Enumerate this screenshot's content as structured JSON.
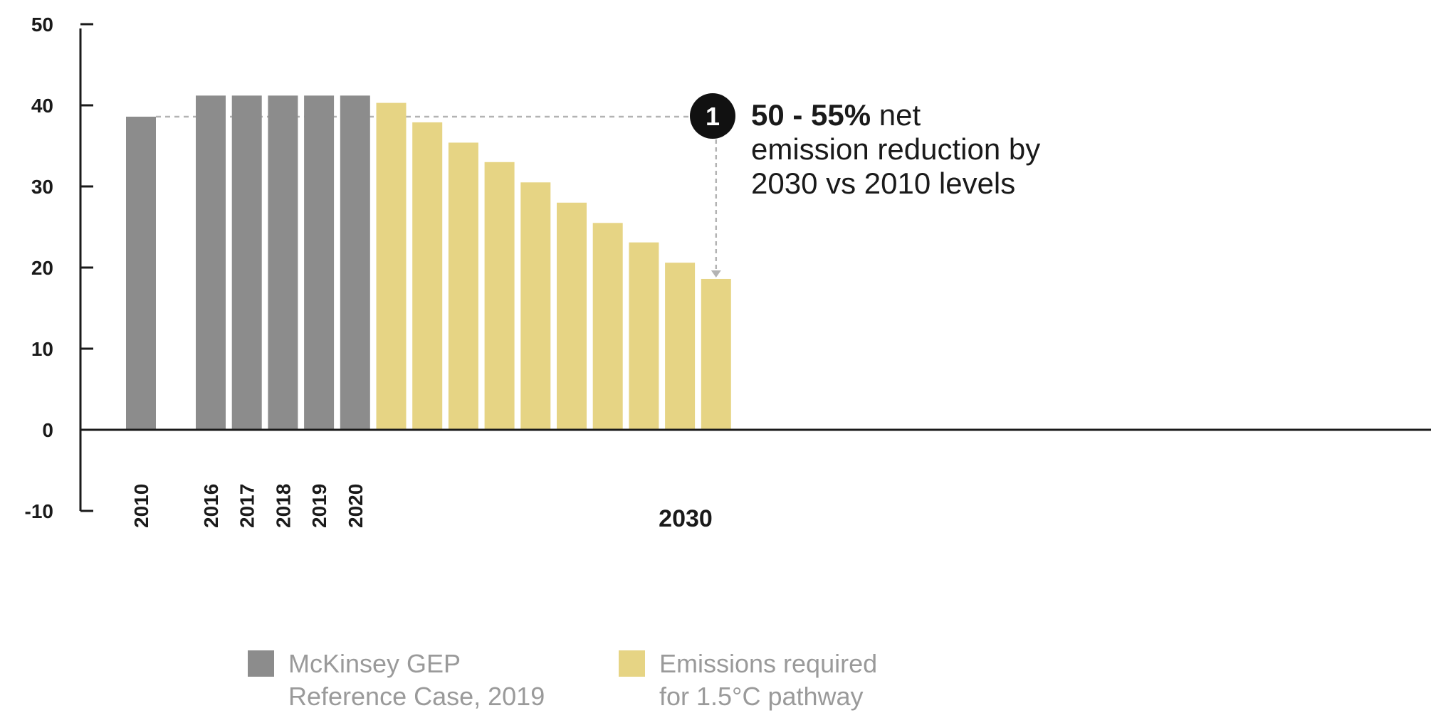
{
  "chart_data": {
    "type": "bar",
    "y_axis": {
      "min": -10,
      "max": 50,
      "ticks": [
        50,
        40,
        30,
        20,
        10,
        0,
        -10
      ]
    },
    "x_axis_highlight_label": "2030",
    "bars": [
      {
        "label": "2010",
        "value": 38.6,
        "series": "reference"
      },
      {
        "label": "2016",
        "value": 41.2,
        "series": "reference"
      },
      {
        "label": "2017",
        "value": 41.2,
        "series": "reference"
      },
      {
        "label": "2018",
        "value": 41.2,
        "series": "reference"
      },
      {
        "label": "2019",
        "value": 41.2,
        "series": "reference"
      },
      {
        "label": "2020",
        "value": 41.2,
        "series": "reference"
      },
      {
        "label": "",
        "value": 40.3,
        "series": "pathway"
      },
      {
        "label": "",
        "value": 37.9,
        "series": "pathway"
      },
      {
        "label": "",
        "value": 35.4,
        "series": "pathway"
      },
      {
        "label": "",
        "value": 33.0,
        "series": "pathway"
      },
      {
        "label": "",
        "value": 30.5,
        "series": "pathway"
      },
      {
        "label": "",
        "value": 28.0,
        "series": "pathway"
      },
      {
        "label": "",
        "value": 25.5,
        "series": "pathway"
      },
      {
        "label": "",
        "value": 23.1,
        "series": "pathway"
      },
      {
        "label": "",
        "value": 20.6,
        "series": "pathway"
      },
      {
        "label": "",
        "value": 18.6,
        "series": "pathway"
      }
    ],
    "series": [
      {
        "key": "reference",
        "name": "McKinsey GEP Reference Case, 2019",
        "color": "#8c8c8c"
      },
      {
        "key": "pathway",
        "name": "Emissions required for 1.5°C pathway",
        "color": "#e6d484"
      }
    ],
    "annotation": {
      "badge": "1",
      "bold_text": "50 - 55%",
      "text_1": " net",
      "text_2": "emission reduction by",
      "text_3": "2030 vs 2010 levels",
      "reference_value": 38.6,
      "target_value": 18.6
    }
  },
  "legend": {
    "items": [
      {
        "line1": "McKinsey GEP",
        "line2": "Reference Case, 2019",
        "color": "#8c8c8c"
      },
      {
        "line1": "Emissions required",
        "line2": "for 1.5°C pathway",
        "color": "#e6d484"
      }
    ]
  }
}
